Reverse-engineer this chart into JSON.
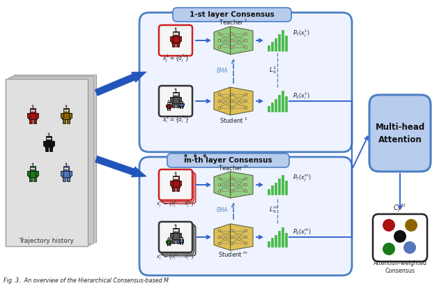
{
  "bg_color": "#ffffff",
  "traj_label": "Trajectory history",
  "consensus1_title": "1-st layer Consensus",
  "consensusm_title": "m-th layer Consensus",
  "multi_head_label": "Multi-head\nAttention",
  "att_label": "Attention-weighted\nConsensus",
  "robot_colors_traj": [
    "#aa1111",
    "#8b6500",
    "#111111",
    "#1a7a1a",
    "#5577bb"
  ],
  "bar_color": "#44bb44",
  "bar_edge": "#33aa33",
  "teacher_net_color": "#88cc77",
  "student_net_color": "#ddbb44",
  "arrow_blue": "#3366cc",
  "big_arrow_blue": "#2255bb",
  "ema_dashed_color": "#5588cc",
  "consensus_fill": "#eef3ff",
  "consensus_edge": "#4a7fc4",
  "mha_fill": "#b8ccee",
  "mha_edge": "#4a7fc4",
  "att_box_fill": "#ffffff",
  "att_box_edge": "#222222",
  "att_dot_colors": [
    "#aa1111",
    "#8b6500",
    "#111111",
    "#1a7a1a",
    "#5577bb"
  ],
  "title_box_fill": "#b8ccee",
  "title_box_edge": "#4a7fc4"
}
